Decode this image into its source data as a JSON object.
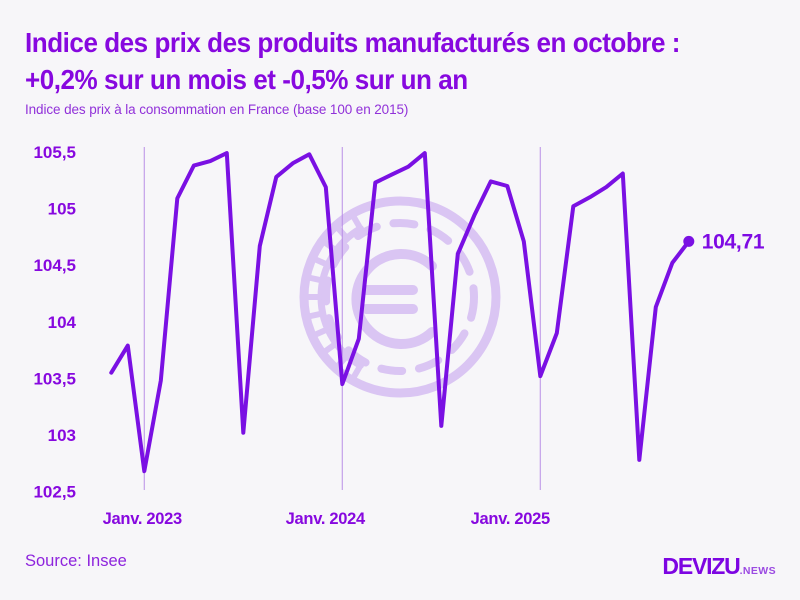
{
  "header": {
    "title_line1": "Indice des prix des produits manufacturés en octobre :",
    "title_line2": "+0,2% sur un mois et -0,5% sur un an",
    "subtitle": "Indice des prix à la consommation en France (base 100 en 2015)"
  },
  "chart_data": {
    "type": "line",
    "series_name": "Indice des prix des produits manufacturés (base 100 en 2015)",
    "x": [
      "2022-11",
      "2022-12",
      "2023-01",
      "2023-02",
      "2023-03",
      "2023-04",
      "2023-05",
      "2023-06",
      "2023-07",
      "2023-08",
      "2023-09",
      "2023-10",
      "2023-11",
      "2023-12",
      "2024-01",
      "2024-02",
      "2024-03",
      "2024-04",
      "2024-05",
      "2024-06",
      "2024-07",
      "2024-08",
      "2024-09",
      "2024-10",
      "2024-11",
      "2024-12",
      "2025-01",
      "2025-02",
      "2025-03",
      "2025-04",
      "2025-05",
      "2025-06",
      "2025-07",
      "2025-08",
      "2025-09",
      "2025-10"
    ],
    "values": [
      103.55,
      103.79,
      102.68,
      103.48,
      105.09,
      105.38,
      105.42,
      105.49,
      103.02,
      104.67,
      105.28,
      105.4,
      105.48,
      105.19,
      103.45,
      103.85,
      105.23,
      105.3,
      105.37,
      105.49,
      103.08,
      104.6,
      104.94,
      105.24,
      105.2,
      104.71,
      103.52,
      103.9,
      105.02,
      105.1,
      105.19,
      105.31,
      102.78,
      104.13,
      104.52,
      104.71
    ],
    "ylim": [
      102.5,
      105.5
    ],
    "yticks": [
      {
        "label": "105,5",
        "value": 105.5
      },
      {
        "label": "105",
        "value": 105.0
      },
      {
        "label": "104,5",
        "value": 104.5
      },
      {
        "label": "104",
        "value": 104.0
      },
      {
        "label": "103,5",
        "value": 103.5
      },
      {
        "label": "103",
        "value": 103.0
      },
      {
        "label": "102,5",
        "value": 102.5
      }
    ],
    "xticks": [
      {
        "label": "Janv. 2023",
        "month_index": 2
      },
      {
        "label": "Janv. 2024",
        "month_index": 14
      },
      {
        "label": "Janv. 2025",
        "month_index": 26
      }
    ],
    "grid": "vertical lines at each January",
    "legend": "none",
    "end_label": "104,71",
    "end_value": 104.71,
    "watermark": "euro-coin-icon"
  },
  "footer": {
    "source": "Source: Insee",
    "brand": "DEVIZU",
    "brand_suffix": ".NEWS"
  },
  "colors": {
    "accent_text": "#8708df",
    "line": "#7a10e3",
    "gridline": "#b78ae6",
    "watermark": "#dac5f3",
    "background": "#f7f6f9"
  }
}
